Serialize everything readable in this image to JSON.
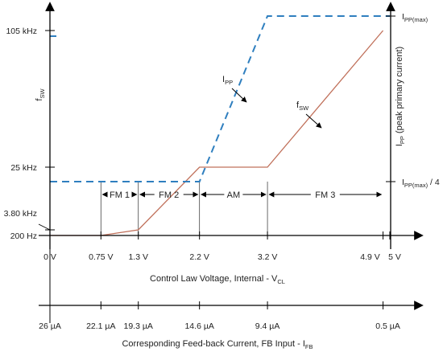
{
  "chart_data": {
    "type": "line",
    "x_axis": {
      "label": "Control Law Voltage, Internal - V",
      "label_sub": "CL",
      "range": [
        0,
        5
      ],
      "ticks": [
        {
          "value": 0,
          "label": "0 V"
        },
        {
          "value": 0.75,
          "label": "0.75 V"
        },
        {
          "value": 1.3,
          "label": "1.3 V"
        },
        {
          "value": 2.2,
          "label": "2.2 V"
        },
        {
          "value": 3.2,
          "label": "3.2 V"
        },
        {
          "value": 4.9,
          "label": "4.9 V"
        },
        {
          "value": 5,
          "label": "5 V"
        }
      ]
    },
    "secondary_x_axis": {
      "label": "Corresponding Feed-back Current, FB Input - I",
      "label_sub": "FB",
      "ticks": [
        {
          "value": 0,
          "label": "26 µA"
        },
        {
          "value": 0.75,
          "label": "22.1 µA"
        },
        {
          "value": 1.3,
          "label": "19.3 µA"
        },
        {
          "value": 2.2,
          "label": "14.6 µA"
        },
        {
          "value": 3.2,
          "label": "9.4 µA"
        },
        {
          "value": 4.9,
          "label": "0.5 µA"
        }
      ]
    },
    "left_y_axis": {
      "label": "f",
      "label_sub": "SW",
      "ticks": [
        {
          "level": 0,
          "label": "200 Hz"
        },
        {
          "level": 0.0356,
          "label": "3.80 kHz"
        },
        {
          "level": 0.2373,
          "label": "25 kHz"
        },
        {
          "level": 1.0,
          "label": "105 kHz"
        }
      ]
    },
    "right_y_axis": {
      "label": "I",
      "label_sub": "PP",
      "label_rest": " (peak primary current)",
      "ticks": [
        {
          "level": 0.25,
          "label": "I",
          "sub": "PP(max)",
          "rest": " / 4"
        },
        {
          "level": 1.0,
          "label": "I",
          "sub": "PP(max)",
          "rest": ""
        }
      ]
    },
    "regions": [
      {
        "label": "FM 1",
        "from": 0.75,
        "to": 1.3
      },
      {
        "label": "FM 2",
        "from": 1.3,
        "to": 2.2
      },
      {
        "label": "AM",
        "from": 2.2,
        "to": 3.2
      },
      {
        "label": "FM 3",
        "from": 3.2,
        "to": 4.9
      }
    ],
    "series": [
      {
        "name": "f",
        "name_sub": "SW",
        "color": "#c0705a",
        "style": "solid",
        "axis": "left",
        "points": [
          [
            0,
            0
          ],
          [
            0.75,
            0
          ],
          [
            1.3,
            0.0356
          ],
          [
            2.2,
            0.2373
          ],
          [
            3.2,
            0.2373
          ],
          [
            4.9,
            1.0
          ]
        ]
      },
      {
        "name": "I",
        "name_sub": "PP",
        "color": "#2f7fbf",
        "style": "dashed",
        "axis": "right",
        "points": [
          [
            0,
            0.25
          ],
          [
            2.2,
            0.25
          ],
          [
            3.2,
            1.0
          ],
          [
            5,
            1.0
          ]
        ]
      }
    ],
    "grid": false
  }
}
